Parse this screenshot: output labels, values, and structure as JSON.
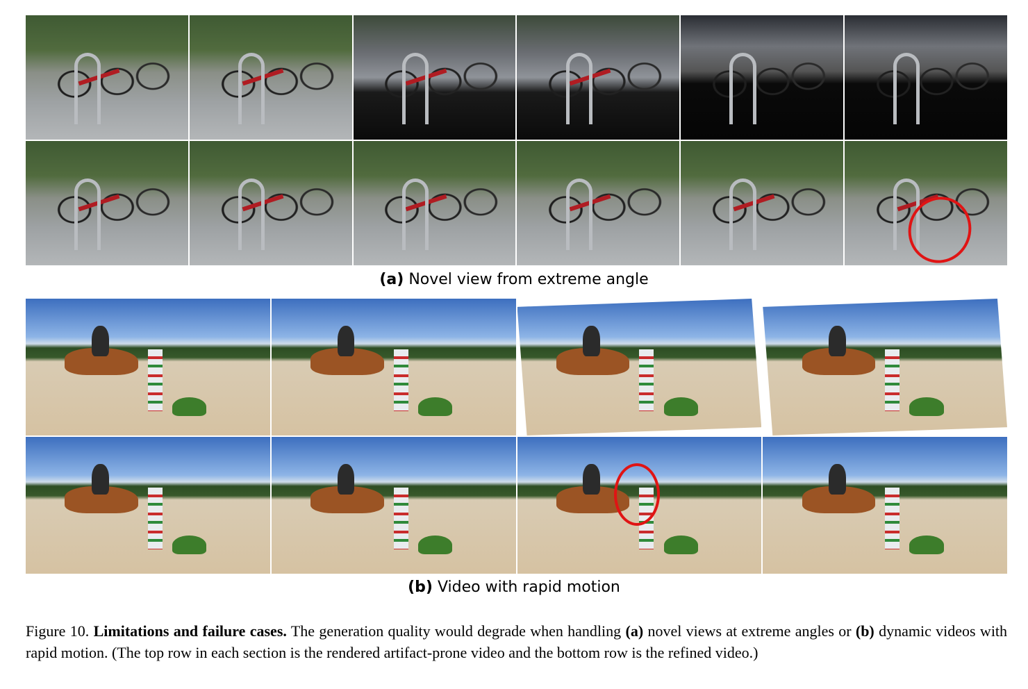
{
  "figure": {
    "subfigure_a": {
      "label": "(a)",
      "text": "Novel view from extreme angle"
    },
    "subfigure_b": {
      "label": "(b)",
      "text": "Video with rapid motion"
    },
    "caption": {
      "prefix": "Figure 10.",
      "bold": "Limitations and failure cases.",
      "part1": "The generation quality would degrade when handling",
      "a_label": "(a)",
      "part2": "novel views at extreme angles or",
      "b_label": "(b)",
      "part3": "dynamic videos with rapid motion. (The top row in each section is the rendered artifact-prone video and the bottom row is the refined video.)"
    }
  },
  "colors": {
    "highlight_circle": "#e01414",
    "bike_frame": "#b01c22",
    "horse_coat": "#9b5424"
  }
}
